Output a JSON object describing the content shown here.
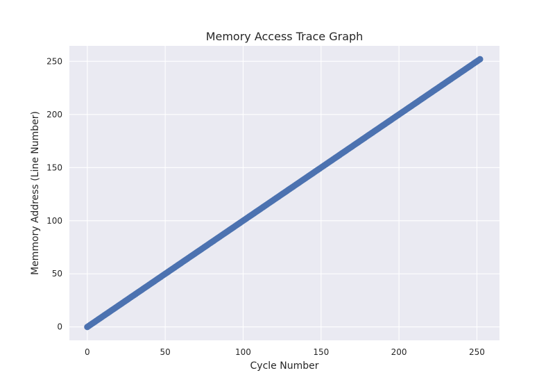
{
  "chart_data": {
    "type": "scatter",
    "title": "Memory Access Trace Graph",
    "xlabel": "Cycle Number",
    "ylabel": "Memmory Address (Line Number)",
    "xlim": [
      -11.5,
      264.5
    ],
    "ylim": [
      -12.6,
      264.6
    ],
    "xticks": [
      0,
      50,
      100,
      150,
      200,
      250
    ],
    "yticks": [
      0,
      50,
      100,
      150,
      200,
      250
    ],
    "grid": true,
    "background_color": "#eaeaf2",
    "marker_color": "#4c72b0",
    "series": [
      {
        "x_start": 0,
        "x_end": 252,
        "x_step": 1,
        "y_equals_x": true
      }
    ]
  }
}
